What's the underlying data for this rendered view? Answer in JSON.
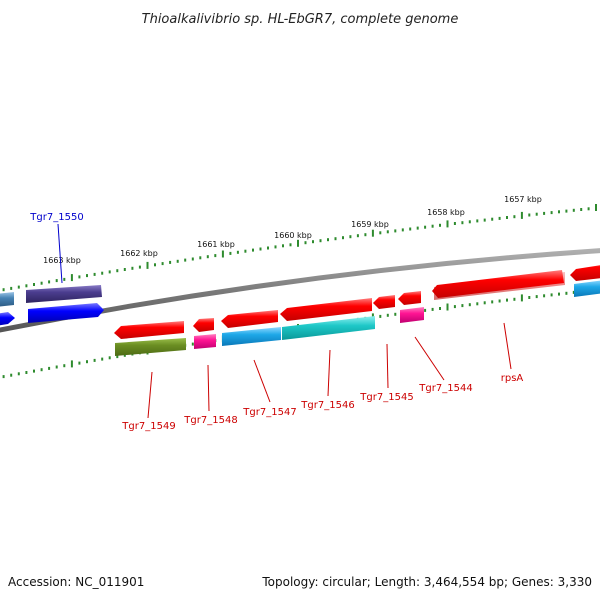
{
  "title": "Thioalkalivibrio sp. HL-EbGR7, complete genome",
  "footer": {
    "accession": "Accession: NC_011901",
    "summary": "Topology: circular; Length: 3,464,554 bp; Genes: 3,330"
  },
  "scale_labels": [
    "1663 kbp",
    "1662 kbp",
    "1661 kbp",
    "1660 kbp",
    "1659 kbp",
    "1658 kbp",
    "1657 kbp"
  ],
  "gene_labels": {
    "g1550": "Tgr7_1550",
    "g1549": "Tgr7_1549",
    "g1548": "Tgr7_1548",
    "g1547": "Tgr7_1547",
    "g1546": "Tgr7_1546",
    "g1545": "Tgr7_1545",
    "g1544": "Tgr7_1544",
    "rpsA": "rpsA"
  },
  "colors": {
    "backbone": "#808080",
    "scale_ticks": "#2e8b2e",
    "gene_red": "#ff0000",
    "label_red": "#cc0000",
    "label_blue": "#0000cc",
    "pink_red": "#f08a8a",
    "olive": "#6b8e23",
    "magenta": "#ff1493",
    "sky": "#1ea8e8",
    "teal": "#1ec8c8",
    "navy": "#4b3d8f",
    "blue": "#0000ff",
    "steel": "#4682b4"
  }
}
